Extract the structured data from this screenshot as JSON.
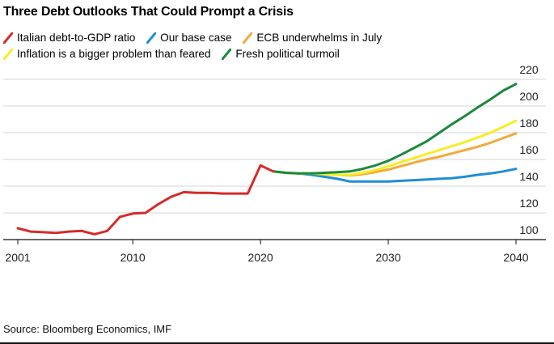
{
  "chart_data": {
    "type": "line",
    "title": "Three Debt Outlooks That Could Prompt a Crisis",
    "xlabel": "",
    "ylabel": "",
    "xlim": [
      2001,
      2043
    ],
    "ylim": [
      100,
      220
    ],
    "x_ticks": [
      2001,
      2010,
      2020,
      2030,
      2040
    ],
    "y_ticks": [
      100,
      120,
      140,
      160,
      180,
      200,
      220
    ],
    "grid": true,
    "y_axis_side": "right",
    "legend_position": "top-left",
    "source": "Source: Bloomberg Economics, IMF",
    "series": [
      {
        "name": "Italian debt-to-GDP ratio",
        "color": "#d62b2b",
        "x": [
          2001,
          2002,
          2003,
          2004,
          2005,
          2006,
          2007,
          2008,
          2009,
          2010,
          2011,
          2012,
          2013,
          2014,
          2015,
          2016,
          2017,
          2018,
          2019,
          2020,
          2021
        ],
        "values": [
          108.5,
          106,
          105.5,
          105,
          106,
          106.5,
          104,
          106.5,
          117,
          119.5,
          120,
          126.5,
          132,
          135.5,
          135,
          135,
          134.5,
          134.5,
          134.5,
          155.5,
          151
        ]
      },
      {
        "name": "Our base case",
        "color": "#1f8dd6",
        "x": [
          2021,
          2022,
          2023,
          2024,
          2025,
          2026,
          2027,
          2028,
          2029,
          2030,
          2031,
          2032,
          2033,
          2034,
          2035,
          2036,
          2037,
          2038,
          2039,
          2040
        ],
        "values": [
          151,
          150,
          149.5,
          148.5,
          147,
          145.5,
          143.5,
          143.5,
          143.5,
          143.5,
          144,
          144.5,
          145,
          145.5,
          146,
          147,
          148.5,
          149.5,
          151,
          153
        ]
      },
      {
        "name": "ECB underwhelms in July",
        "color": "#f5a83c",
        "x": [
          2021,
          2022,
          2023,
          2024,
          2025,
          2026,
          2027,
          2028,
          2029,
          2030,
          2031,
          2032,
          2033,
          2034,
          2035,
          2036,
          2037,
          2038,
          2039,
          2040
        ],
        "values": [
          151,
          150,
          149.5,
          149.5,
          149,
          148.5,
          148,
          149,
          150.5,
          152.5,
          155,
          157.5,
          160,
          162,
          164.5,
          167,
          169.5,
          172.5,
          176,
          179.5
        ]
      },
      {
        "name": "Inflation is a bigger problem than feared",
        "color": "#f5ee25",
        "x": [
          2021,
          2022,
          2023,
          2024,
          2025,
          2026,
          2027,
          2028,
          2029,
          2030,
          2031,
          2032,
          2033,
          2034,
          2035,
          2036,
          2037,
          2038,
          2039,
          2040
        ],
        "values": [
          151,
          150,
          149.5,
          149.5,
          149,
          148.5,
          148.5,
          150,
          152,
          155,
          158,
          161,
          164,
          167,
          170,
          173,
          176.5,
          180,
          184.5,
          189
        ]
      },
      {
        "name": "Fresh political turmoil",
        "color": "#1a8a3c",
        "x": [
          2021,
          2022,
          2023,
          2024,
          2025,
          2026,
          2027,
          2028,
          2029,
          2030,
          2031,
          2032,
          2033,
          2034,
          2035,
          2036,
          2037,
          2038,
          2039,
          2040
        ],
        "values": [
          151,
          150,
          149.5,
          149.5,
          150,
          150.5,
          151,
          153,
          155.5,
          159,
          163.5,
          168.5,
          173.5,
          180,
          186.5,
          192.5,
          199,
          205,
          211.5,
          216.5
        ]
      }
    ]
  }
}
